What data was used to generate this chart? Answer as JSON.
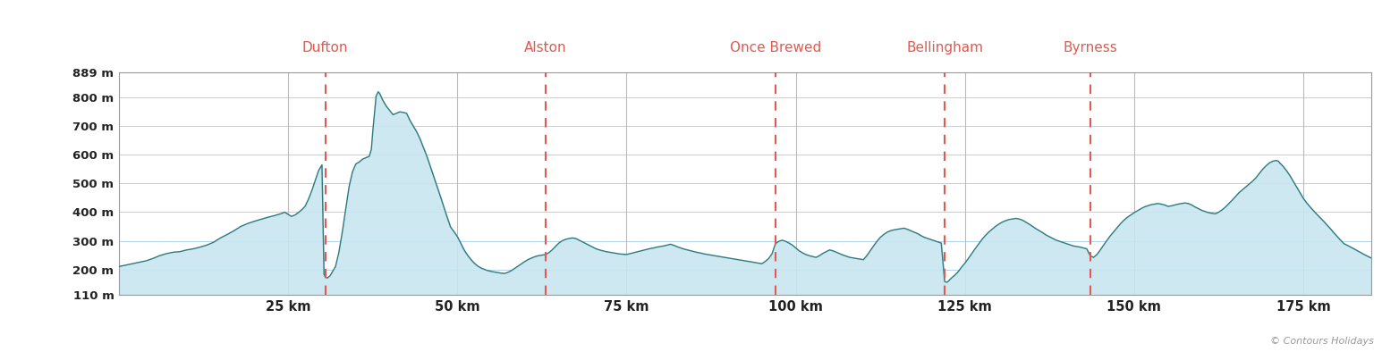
{
  "xlim": [
    0,
    185
  ],
  "ylim": [
    110,
    889
  ],
  "yticks": [
    110,
    200,
    300,
    400,
    500,
    600,
    700,
    800,
    889
  ],
  "ytick_labels": [
    "110 m",
    "200 m",
    "300 m",
    "400 m",
    "500 m",
    "600 m",
    "700 m",
    "800 m",
    "889 m"
  ],
  "xticks": [
    25,
    50,
    75,
    100,
    125,
    150,
    175
  ],
  "xtick_labels": [
    "25 km",
    "50 km",
    "75 km",
    "100 km",
    "125 km",
    "150 km",
    "175 km"
  ],
  "waypoints": [
    {
      "name": "Dufton",
      "x": 30.5
    },
    {
      "name": "Alston",
      "x": 63.0
    },
    {
      "name": "Once Brewed",
      "x": 97.0
    },
    {
      "name": "Bellingham",
      "x": 122.0
    },
    {
      "name": "Byrness",
      "x": 143.5
    }
  ],
  "line_color": "#2e7a7e",
  "fill_color": "#c8e6f0",
  "fill_alpha": 0.9,
  "grid_color": "#b0d4e8",
  "background_color": "#ffffff",
  "waypoint_label_color": "#e05a50",
  "waypoint_line_color": "#e05a50",
  "copyright_text": "© Contours Holidays",
  "profile_data": [
    [
      0,
      210
    ],
    [
      1,
      215
    ],
    [
      2,
      220
    ],
    [
      3,
      225
    ],
    [
      4,
      230
    ],
    [
      5,
      238
    ],
    [
      6,
      248
    ],
    [
      7,
      255
    ],
    [
      8,
      260
    ],
    [
      9,
      262
    ],
    [
      10,
      268
    ],
    [
      11,
      272
    ],
    [
      12,
      278
    ],
    [
      13,
      285
    ],
    [
      14,
      295
    ],
    [
      15,
      310
    ],
    [
      16,
      322
    ],
    [
      17,
      335
    ],
    [
      18,
      350
    ],
    [
      19,
      360
    ],
    [
      20,
      368
    ],
    [
      21,
      375
    ],
    [
      22,
      382
    ],
    [
      23,
      388
    ],
    [
      24,
      395
    ],
    [
      24.5,
      400
    ],
    [
      25,
      392
    ],
    [
      25.5,
      385
    ],
    [
      26,
      390
    ],
    [
      26.5,
      398
    ],
    [
      27,
      408
    ],
    [
      27.5,
      420
    ],
    [
      28,
      445
    ],
    [
      28.5,
      475
    ],
    [
      29,
      510
    ],
    [
      29.5,
      545
    ],
    [
      30,
      565
    ],
    [
      30.3,
      183
    ],
    [
      30.5,
      173
    ],
    [
      30.8,
      170
    ],
    [
      31.2,
      178
    ],
    [
      32,
      210
    ],
    [
      32.5,
      260
    ],
    [
      33,
      330
    ],
    [
      33.5,
      410
    ],
    [
      34,
      488
    ],
    [
      34.5,
      540
    ],
    [
      35,
      568
    ],
    [
      35.5,
      575
    ],
    [
      36,
      585
    ],
    [
      36.5,
      590
    ],
    [
      37,
      595
    ],
    [
      37.3,
      620
    ],
    [
      37.5,
      680
    ],
    [
      38,
      805
    ],
    [
      38.3,
      820
    ],
    [
      38.5,
      815
    ],
    [
      39,
      790
    ],
    [
      39.5,
      770
    ],
    [
      40,
      755
    ],
    [
      40.5,
      740
    ],
    [
      41,
      745
    ],
    [
      41.5,
      750
    ],
    [
      42,
      748
    ],
    [
      42.5,
      745
    ],
    [
      43,
      720
    ],
    [
      43.5,
      700
    ],
    [
      44,
      680
    ],
    [
      44.5,
      655
    ],
    [
      45,
      625
    ],
    [
      45.5,
      595
    ],
    [
      46,
      560
    ],
    [
      46.5,
      525
    ],
    [
      47,
      490
    ],
    [
      47.5,
      455
    ],
    [
      48,
      418
    ],
    [
      48.5,
      382
    ],
    [
      49,
      348
    ],
    [
      49.5,
      332
    ],
    [
      50,
      315
    ],
    [
      50.5,
      292
    ],
    [
      51,
      268
    ],
    [
      51.5,
      250
    ],
    [
      52,
      235
    ],
    [
      52.5,
      222
    ],
    [
      53,
      212
    ],
    [
      53.5,
      205
    ],
    [
      54,
      200
    ],
    [
      54.5,
      196
    ],
    [
      55,
      193
    ],
    [
      55.5,
      191
    ],
    [
      56,
      189
    ],
    [
      56.5,
      187
    ],
    [
      57,
      186
    ],
    [
      57.5,
      190
    ],
    [
      58,
      196
    ],
    [
      58.5,
      204
    ],
    [
      59,
      212
    ],
    [
      59.5,
      220
    ],
    [
      60,
      228
    ],
    [
      60.5,
      235
    ],
    [
      61,
      240
    ],
    [
      61.5,
      245
    ],
    [
      62,
      248
    ],
    [
      62.5,
      250
    ],
    [
      63,
      252
    ],
    [
      63.5,
      258
    ],
    [
      64,
      268
    ],
    [
      64.5,
      280
    ],
    [
      65,
      292
    ],
    [
      65.5,
      300
    ],
    [
      66,
      305
    ],
    [
      66.5,
      308
    ],
    [
      67,
      310
    ],
    [
      67.5,
      308
    ],
    [
      68,
      302
    ],
    [
      68.5,
      296
    ],
    [
      69,
      290
    ],
    [
      69.5,
      284
    ],
    [
      70,
      278
    ],
    [
      70.5,
      272
    ],
    [
      71,
      268
    ],
    [
      71.5,
      265
    ],
    [
      72,
      262
    ],
    [
      72.5,
      260
    ],
    [
      73,
      258
    ],
    [
      73.5,
      256
    ],
    [
      74,
      254
    ],
    [
      74.5,
      253
    ],
    [
      75,
      252
    ],
    [
      75.5,
      255
    ],
    [
      76,
      258
    ],
    [
      76.5,
      261
    ],
    [
      77,
      264
    ],
    [
      77.5,
      267
    ],
    [
      78,
      270
    ],
    [
      78.5,
      273
    ],
    [
      79,
      275
    ],
    [
      79.5,
      278
    ],
    [
      80,
      280
    ],
    [
      80.5,
      282
    ],
    [
      81,
      285
    ],
    [
      81.5,
      288
    ],
    [
      82,
      284
    ],
    [
      82.5,
      279
    ],
    [
      83,
      275
    ],
    [
      83.5,
      271
    ],
    [
      84,
      268
    ],
    [
      84.5,
      265
    ],
    [
      85,
      262
    ],
    [
      85.5,
      259
    ],
    [
      86,
      257
    ],
    [
      86.5,
      254
    ],
    [
      87,
      252
    ],
    [
      87.5,
      250
    ],
    [
      88,
      248
    ],
    [
      88.5,
      246
    ],
    [
      89,
      244
    ],
    [
      89.5,
      242
    ],
    [
      90,
      240
    ],
    [
      90.5,
      238
    ],
    [
      91,
      236
    ],
    [
      91.5,
      234
    ],
    [
      92,
      232
    ],
    [
      92.5,
      230
    ],
    [
      93,
      228
    ],
    [
      93.5,
      226
    ],
    [
      94,
      224
    ],
    [
      94.5,
      222
    ],
    [
      95,
      220
    ],
    [
      95.5,
      228
    ],
    [
      96,
      238
    ],
    [
      96.5,
      255
    ],
    [
      97,
      290
    ],
    [
      97.5,
      298
    ],
    [
      98,
      302
    ],
    [
      98.5,
      298
    ],
    [
      99,
      292
    ],
    [
      99.5,
      285
    ],
    [
      100,
      275
    ],
    [
      100.5,
      265
    ],
    [
      101,
      258
    ],
    [
      101.5,
      252
    ],
    [
      102,
      248
    ],
    [
      102.5,
      245
    ],
    [
      103,
      242
    ],
    [
      103.5,
      248
    ],
    [
      104,
      256
    ],
    [
      104.5,
      262
    ],
    [
      105,
      268
    ],
    [
      105.5,
      265
    ],
    [
      106,
      260
    ],
    [
      106.5,
      255
    ],
    [
      107,
      250
    ],
    [
      107.5,
      246
    ],
    [
      108,
      242
    ],
    [
      108.5,
      240
    ],
    [
      109,
      238
    ],
    [
      109.5,
      236
    ],
    [
      110,
      234
    ],
    [
      110.5,
      248
    ],
    [
      111,
      265
    ],
    [
      111.5,
      282
    ],
    [
      112,
      298
    ],
    [
      112.5,
      312
    ],
    [
      113,
      322
    ],
    [
      113.5,
      330
    ],
    [
      114,
      335
    ],
    [
      114.5,
      338
    ],
    [
      115,
      340
    ],
    [
      115.5,
      342
    ],
    [
      116,
      344
    ],
    [
      116.5,
      340
    ],
    [
      117,
      335
    ],
    [
      117.5,
      330
    ],
    [
      118,
      325
    ],
    [
      118.5,
      318
    ],
    [
      119,
      312
    ],
    [
      119.5,
      308
    ],
    [
      120,
      304
    ],
    [
      120.5,
      300
    ],
    [
      121,
      296
    ],
    [
      121.5,
      292
    ],
    [
      122,
      158
    ],
    [
      122.3,
      155
    ],
    [
      122.5,
      158
    ],
    [
      123,
      170
    ],
    [
      123.5,
      180
    ],
    [
      124,
      192
    ],
    [
      124.5,
      208
    ],
    [
      125,
      222
    ],
    [
      125.5,
      238
    ],
    [
      126,
      255
    ],
    [
      126.5,
      272
    ],
    [
      127,
      288
    ],
    [
      127.5,
      304
    ],
    [
      128,
      318
    ],
    [
      128.5,
      330
    ],
    [
      129,
      340
    ],
    [
      129.5,
      350
    ],
    [
      130,
      358
    ],
    [
      130.5,
      365
    ],
    [
      131,
      370
    ],
    [
      131.5,
      374
    ],
    [
      132,
      376
    ],
    [
      132.5,
      378
    ],
    [
      133,
      376
    ],
    [
      133.5,
      372
    ],
    [
      134,
      365
    ],
    [
      134.5,
      358
    ],
    [
      135,
      350
    ],
    [
      135.5,
      342
    ],
    [
      136,
      335
    ],
    [
      136.5,
      328
    ],
    [
      137,
      320
    ],
    [
      137.5,
      314
    ],
    [
      138,
      308
    ],
    [
      138.5,
      302
    ],
    [
      139,
      298
    ],
    [
      139.5,
      294
    ],
    [
      140,
      290
    ],
    [
      140.5,
      286
    ],
    [
      141,
      282
    ],
    [
      141.5,
      280
    ],
    [
      142,
      278
    ],
    [
      142.5,
      275
    ],
    [
      143,
      272
    ],
    [
      143.5,
      248
    ],
    [
      144,
      242
    ],
    [
      144.5,
      252
    ],
    [
      145,
      268
    ],
    [
      145.5,
      285
    ],
    [
      146,
      302
    ],
    [
      146.5,
      318
    ],
    [
      147,
      332
    ],
    [
      147.5,
      346
    ],
    [
      148,
      360
    ],
    [
      148.5,
      372
    ],
    [
      149,
      382
    ],
    [
      149.5,
      390
    ],
    [
      150,
      398
    ],
    [
      150.5,
      405
    ],
    [
      151,
      412
    ],
    [
      151.5,
      418
    ],
    [
      152,
      422
    ],
    [
      152.5,
      426
    ],
    [
      153,
      428
    ],
    [
      153.5,
      430
    ],
    [
      154,
      428
    ],
    [
      154.5,
      425
    ],
    [
      155,
      420
    ],
    [
      155.5,
      422
    ],
    [
      156,
      425
    ],
    [
      156.5,
      428
    ],
    [
      157,
      430
    ],
    [
      157.5,
      432
    ],
    [
      158,
      430
    ],
    [
      158.5,
      425
    ],
    [
      159,
      418
    ],
    [
      159.5,
      412
    ],
    [
      160,
      406
    ],
    [
      160.5,
      402
    ],
    [
      161,
      398
    ],
    [
      161.5,
      396
    ],
    [
      162,
      394
    ],
    [
      162.5,
      400
    ],
    [
      163,
      408
    ],
    [
      163.5,
      418
    ],
    [
      164,
      430
    ],
    [
      164.5,
      442
    ],
    [
      165,
      455
    ],
    [
      165.5,
      468
    ],
    [
      166,
      478
    ],
    [
      166.5,
      488
    ],
    [
      167,
      498
    ],
    [
      167.5,
      508
    ],
    [
      168,
      520
    ],
    [
      168.5,
      535
    ],
    [
      169,
      550
    ],
    [
      169.5,
      562
    ],
    [
      170,
      572
    ],
    [
      170.5,
      578
    ],
    [
      171,
      580
    ],
    [
      171.3,
      578
    ],
    [
      171.5,
      572
    ],
    [
      172,
      560
    ],
    [
      172.5,
      545
    ],
    [
      173,
      528
    ],
    [
      173.5,
      508
    ],
    [
      174,
      488
    ],
    [
      174.5,
      468
    ],
    [
      175,
      448
    ],
    [
      175.5,
      432
    ],
    [
      176,
      418
    ],
    [
      176.5,
      405
    ],
    [
      177,
      392
    ],
    [
      177.5,
      380
    ],
    [
      178,
      368
    ],
    [
      178.5,
      355
    ],
    [
      179,
      342
    ],
    [
      179.5,
      328
    ],
    [
      180,
      315
    ],
    [
      180.5,
      302
    ],
    [
      181,
      290
    ],
    [
      182,
      278
    ],
    [
      183,
      265
    ],
    [
      184,
      252
    ],
    [
      185,
      240
    ]
  ]
}
